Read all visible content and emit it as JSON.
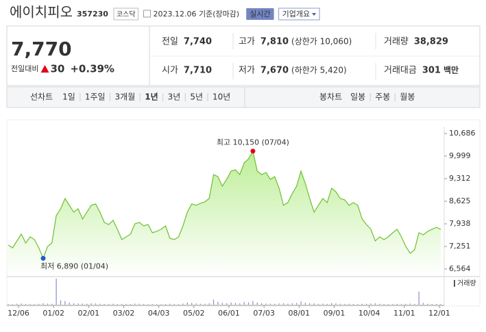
{
  "header": {
    "name": "에이치피오",
    "code": "357230",
    "market": "코스닥",
    "date": "2023.12.06 기준(장마감)",
    "realtime": "실시간",
    "overview": "기업개요"
  },
  "price": {
    "current": "7,770",
    "change_label": "전일대비",
    "change": "30",
    "change_pct": "+0.39%",
    "color": "#e2001a"
  },
  "stats": [
    {
      "label": "전일",
      "value": "7,740",
      "color": "#222222"
    },
    {
      "label": "고가",
      "value": "7,810",
      "note": "(상한가 10,060)",
      "color": "#e2001a"
    },
    {
      "label": "거래량",
      "value": "38,829",
      "color": "#222222"
    },
    {
      "label": "시가",
      "value": "7,710",
      "color": "#1e5bc6"
    },
    {
      "label": "저가",
      "value": "7,670",
      "note": "(하한가 5,420)",
      "color": "#1e5bc6"
    },
    {
      "label": "거래대금",
      "value": "301",
      "unit": "백만",
      "color": "#222222"
    }
  ],
  "tabs": {
    "line_label": "선차트",
    "line_periods": [
      "1일",
      "1주일",
      "3개월",
      "1년",
      "3년",
      "5년",
      "10년"
    ],
    "selected": 3,
    "candle_label": "봉차트",
    "candle_periods": [
      "일봉",
      "주봉",
      "월봉"
    ]
  },
  "chart_data": {
    "type": "line",
    "color": "#6dbf2e",
    "values": [
      7293,
      7210,
      7418,
      7626,
      7356,
      7543,
      7460,
      7210,
      6890,
      7251,
      7356,
      8190,
      8398,
      8710,
      8502,
      8294,
      8398,
      8086,
      8294,
      8502,
      8544,
      8294,
      7982,
      7918,
      8044,
      7774,
      7460,
      7543,
      7626,
      7938,
      7982,
      7876,
      7918,
      7668,
      7710,
      7774,
      7876,
      7500,
      7460,
      7543,
      7876,
      8294,
      8544,
      8502,
      8565,
      8606,
      8710,
      9437,
      9375,
      9083,
      9291,
      9541,
      9583,
      9437,
      9790,
      9916,
      10150,
      9541,
      9437,
      9500,
      9291,
      9375,
      9021,
      8502,
      8585,
      8856,
      9083,
      9541,
      9166,
      8710,
      8294,
      8502,
      8710,
      8585,
      9021,
      8917,
      8710,
      8668,
      8502,
      8585,
      8502,
      8086,
      7918,
      7774,
      7418,
      7543,
      7460,
      7543,
      7668,
      7774,
      7543,
      7251,
      7043,
      7147,
      7668,
      7605,
      7710,
      7774,
      7834,
      7770
    ],
    "ylim": [
      6564,
      10686
    ],
    "yticks": [
      {
        "value": 6564,
        "label": "6,564"
      },
      {
        "value": 7251,
        "label": "7,251"
      },
      {
        "value": 7938,
        "label": "7,938"
      },
      {
        "value": 8625,
        "label": "8,625"
      },
      {
        "value": 9312,
        "label": "9,312"
      },
      {
        "value": 9999,
        "label": "9,999"
      },
      {
        "value": 10686,
        "label": "10,686"
      }
    ],
    "x_labels": [
      "12/06",
      "01/02",
      "02/01",
      "03/02",
      "04/03",
      "05/02",
      "06/01",
      "07/03",
      "08/01",
      "09/01",
      "10/04",
      "11/01",
      "12/01"
    ],
    "annotations": {
      "max": "최고 10,150 (07/04)",
      "min": "최저 6,890 (01/04)",
      "max_color": "#e2001a",
      "min_color": "#1e5bc6"
    },
    "volume": {
      "name": "거래량",
      "color": "#8a8fc9",
      "values": [
        40000,
        35000,
        60000,
        80000,
        45000,
        50000,
        40000,
        55000,
        90000,
        70000,
        60000,
        1800000,
        300000,
        250000,
        150000,
        90000,
        80000,
        70000,
        60000,
        90000,
        80000,
        60000,
        50000,
        45000,
        60000,
        40000,
        50000,
        40000,
        45000,
        70000,
        60000,
        40000,
        35000,
        40000,
        30000,
        35000,
        45000,
        60000,
        40000,
        35000,
        70000,
        150000,
        120000,
        80000,
        60000,
        55000,
        90000,
        350000,
        200000,
        120000,
        100000,
        150000,
        120000,
        90000,
        180000,
        160000,
        250000,
        150000,
        90000,
        80000,
        70000,
        60000,
        80000,
        100000,
        60000,
        90000,
        120000,
        220000,
        130000,
        90000,
        80000,
        60000,
        70000,
        50000,
        110000,
        80000,
        60000,
        50000,
        55000,
        45000,
        40000,
        60000,
        50000,
        70000,
        90000,
        55000,
        45000,
        40000,
        50000,
        45000,
        40000,
        60000,
        70000,
        50000,
        900000,
        120000,
        60000,
        50000,
        45000,
        38829
      ]
    }
  }
}
